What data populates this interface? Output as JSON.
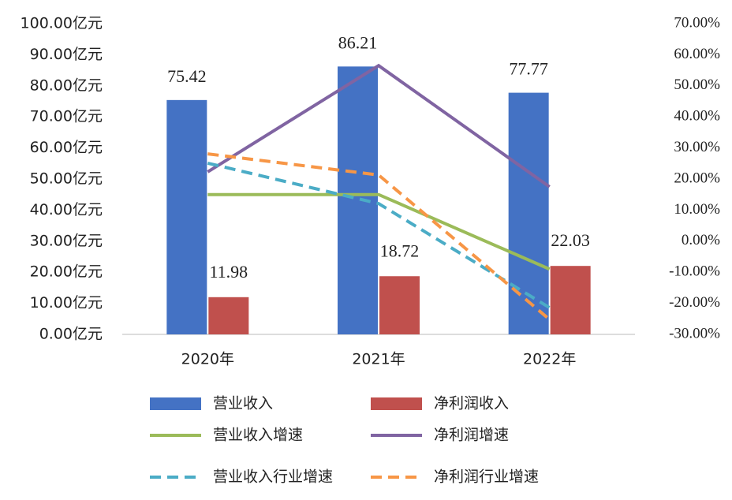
{
  "chart_data": {
    "type": "bar-line",
    "categories": [
      "2020年",
      "2021年",
      "2022年"
    ],
    "ylim": [
      0,
      100
    ],
    "yticks": [
      {
        "value": 0,
        "label": "0.00亿元"
      },
      {
        "value": 10,
        "label": "10.00亿元"
      },
      {
        "value": 20,
        "label": "20.00亿元"
      },
      {
        "value": 30,
        "label": "30.00亿元"
      },
      {
        "value": 40,
        "label": "40.00亿元"
      },
      {
        "value": 50,
        "label": "50.00亿元"
      },
      {
        "value": 60,
        "label": "60.00亿元"
      },
      {
        "value": 70,
        "label": "70.00亿元"
      },
      {
        "value": 80,
        "label": "80.00亿元"
      },
      {
        "value": 90,
        "label": "90.00亿元"
      },
      {
        "value": 100,
        "label": "100.00亿元"
      }
    ],
    "y2lim": [
      -30,
      70
    ],
    "y2ticks": [
      {
        "value": -30,
        "label": "-30.00%"
      },
      {
        "value": -20,
        "label": "-20.00%"
      },
      {
        "value": -10,
        "label": "-10.00%"
      },
      {
        "value": 0,
        "label": "0.00%"
      },
      {
        "value": 10,
        "label": "10.00%"
      },
      {
        "value": 20,
        "label": "20.00%"
      },
      {
        "value": 30,
        "label": "30.00%"
      },
      {
        "value": 40,
        "label": "40.00%"
      },
      {
        "value": 50,
        "label": "50.00%"
      },
      {
        "value": 60,
        "label": "60.00%"
      },
      {
        "value": 70,
        "label": "70.00%"
      }
    ],
    "grid": false,
    "series": [
      {
        "name": "营业收入",
        "type": "bar",
        "color": "#4472c4",
        "values": [
          75.42,
          86.21,
          77.77
        ]
      },
      {
        "name": "净利润收入",
        "type": "bar",
        "color": "#c0504d",
        "values": [
          11.98,
          18.72,
          22.03
        ]
      },
      {
        "name": "营业收入增速",
        "type": "line",
        "axis": "y2",
        "style": "solid",
        "color": "#9bbb59",
        "values": [
          15,
          15,
          -9
        ]
      },
      {
        "name": "净利润增速",
        "type": "line",
        "axis": "y2",
        "style": "solid",
        "color": "#8064a2",
        "values": [
          22.3,
          56.5,
          17.5
        ]
      },
      {
        "name": "营业收入行业增速",
        "type": "line",
        "axis": "y2",
        "style": "dashed",
        "color": "#4bacc6",
        "values": [
          25.1,
          12.1,
          -21.4
        ]
      },
      {
        "name": "净利润行业增速",
        "type": "line",
        "axis": "y2",
        "style": "dashed",
        "color": "#f79646",
        "values": [
          28.1,
          21.3,
          -25.2
        ]
      }
    ]
  }
}
